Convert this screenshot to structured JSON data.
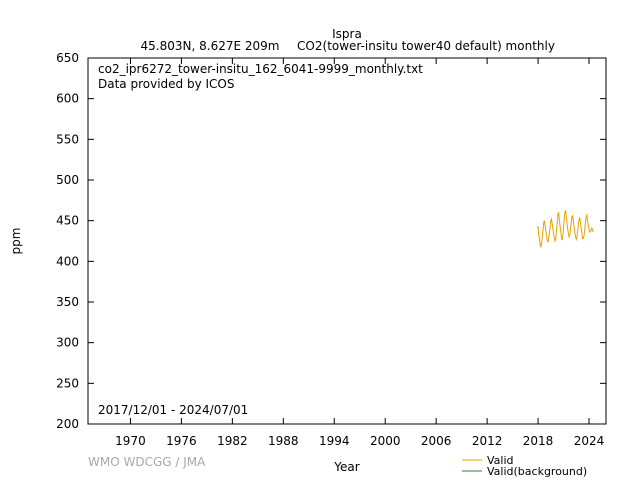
{
  "header": {
    "station": "Ispra",
    "location": "45.803N, 8.627E 209m",
    "species": "CO2(tower-insitu tower40 default) monthly"
  },
  "chart_data": {
    "type": "line",
    "filename": "co2_ipr6272_tower-insitu_162_6041-9999_monthly.txt",
    "provider": "Data provided by ICOS",
    "period": "2017/12/01 - 2024/07/01",
    "xlabel": "Year",
    "ylabel": "ppm",
    "xlim": [
      1965,
      2026
    ],
    "ylim": [
      200,
      650
    ],
    "xticks": [
      1970,
      1976,
      1982,
      1988,
      1994,
      2000,
      2006,
      2012,
      2018,
      2024
    ],
    "yticks": [
      200,
      250,
      300,
      350,
      400,
      450,
      500,
      550,
      600,
      650
    ],
    "grid": false,
    "legend_position": "bottom-right",
    "series": [
      {
        "name": "Valid",
        "color": "#e8a000",
        "x": [
          2017.92,
          2018.0,
          2018.08,
          2018.17,
          2018.25,
          2018.33,
          2018.42,
          2018.5,
          2018.58,
          2018.67,
          2018.75,
          2018.83,
          2018.92,
          2019.0,
          2019.08,
          2019.17,
          2019.25,
          2019.33,
          2019.42,
          2019.5,
          2019.58,
          2019.67,
          2019.75,
          2019.83,
          2019.92,
          2020.0,
          2020.08,
          2020.17,
          2020.25,
          2020.33,
          2020.42,
          2020.5,
          2020.58,
          2020.67,
          2020.75,
          2020.83,
          2020.92,
          2021.0,
          2021.08,
          2021.17,
          2021.25,
          2021.33,
          2021.42,
          2021.5,
          2021.58,
          2021.67,
          2021.75,
          2021.83,
          2021.92,
          2022.0,
          2022.08,
          2022.17,
          2022.25,
          2022.33,
          2022.42,
          2022.5,
          2022.58,
          2022.67,
          2022.75,
          2022.83,
          2022.92,
          2023.0,
          2023.08,
          2023.17,
          2023.25,
          2023.33,
          2023.42,
          2023.5,
          2023.58,
          2023.67,
          2023.75,
          2023.83,
          2023.92,
          2024.0,
          2024.08,
          2024.17,
          2024.25,
          2024.33,
          2024.42,
          2024.5
        ],
        "values": [
          441,
          443,
          432,
          428,
          420,
          418,
          422,
          430,
          438,
          448,
          450,
          444,
          437,
          432,
          426,
          424,
          428,
          435,
          442,
          450,
          452,
          446,
          440,
          434,
          428,
          425,
          427,
          437,
          447,
          458,
          460,
          452,
          444,
          437,
          430,
          426,
          432,
          442,
          452,
          461,
          462,
          454,
          446,
          439,
          433,
          430,
          433,
          441,
          449,
          455,
          456,
          448,
          441,
          436,
          430,
          427,
          430,
          438,
          445,
          451,
          453,
          447,
          441,
          434,
          428,
          428,
          432,
          440,
          448,
          455,
          457,
          449,
          444,
          440,
          436,
          437,
          439,
          441,
          438,
          436
        ]
      },
      {
        "name": "Valid(background)",
        "color": "#2e7d32",
        "x": [],
        "values": []
      }
    ]
  },
  "footer": {
    "credit": "WMO WDCGG / JMA"
  }
}
